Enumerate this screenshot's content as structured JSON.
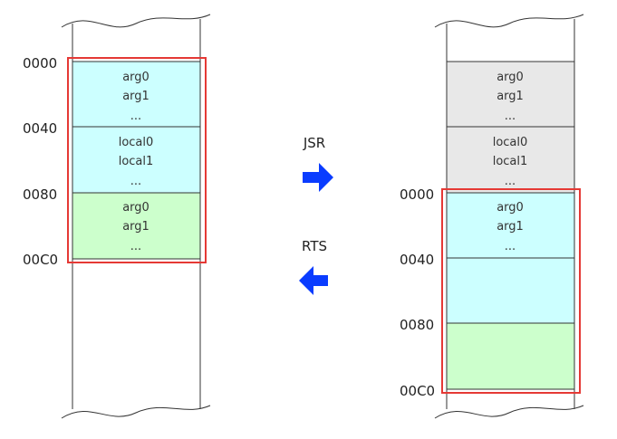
{
  "left_stack": {
    "addresses": [
      "0000",
      "0040",
      "0080",
      "00C0"
    ],
    "blocks": [
      {
        "lines": [
          "arg0",
          "arg1",
          "..."
        ],
        "color": "#ccffff"
      },
      {
        "lines": [
          "local0",
          "local1",
          "..."
        ],
        "color": "#ccffff"
      },
      {
        "lines": [
          "arg0",
          "arg1",
          "..."
        ],
        "color": "#ccffcc"
      }
    ],
    "frame_color": "#e53935"
  },
  "right_stack": {
    "addresses": [
      "0000",
      "0040",
      "0080",
      "00C0"
    ],
    "blocks": [
      {
        "lines": [
          "arg0",
          "arg1",
          "..."
        ],
        "color": "#e8e8e8"
      },
      {
        "lines": [
          "local0",
          "local1",
          "..."
        ],
        "color": "#e8e8e8"
      },
      {
        "lines": [
          "arg0",
          "arg1",
          "..."
        ],
        "color": "#ccffff"
      },
      {
        "lines": [],
        "color": "#ccffff"
      },
      {
        "lines": [],
        "color": "#ccffcc"
      }
    ],
    "frame_color": "#e53935"
  },
  "arrows": {
    "jsr_label": "JSR",
    "rts_label": "RTS",
    "color": "#0a3cff"
  }
}
